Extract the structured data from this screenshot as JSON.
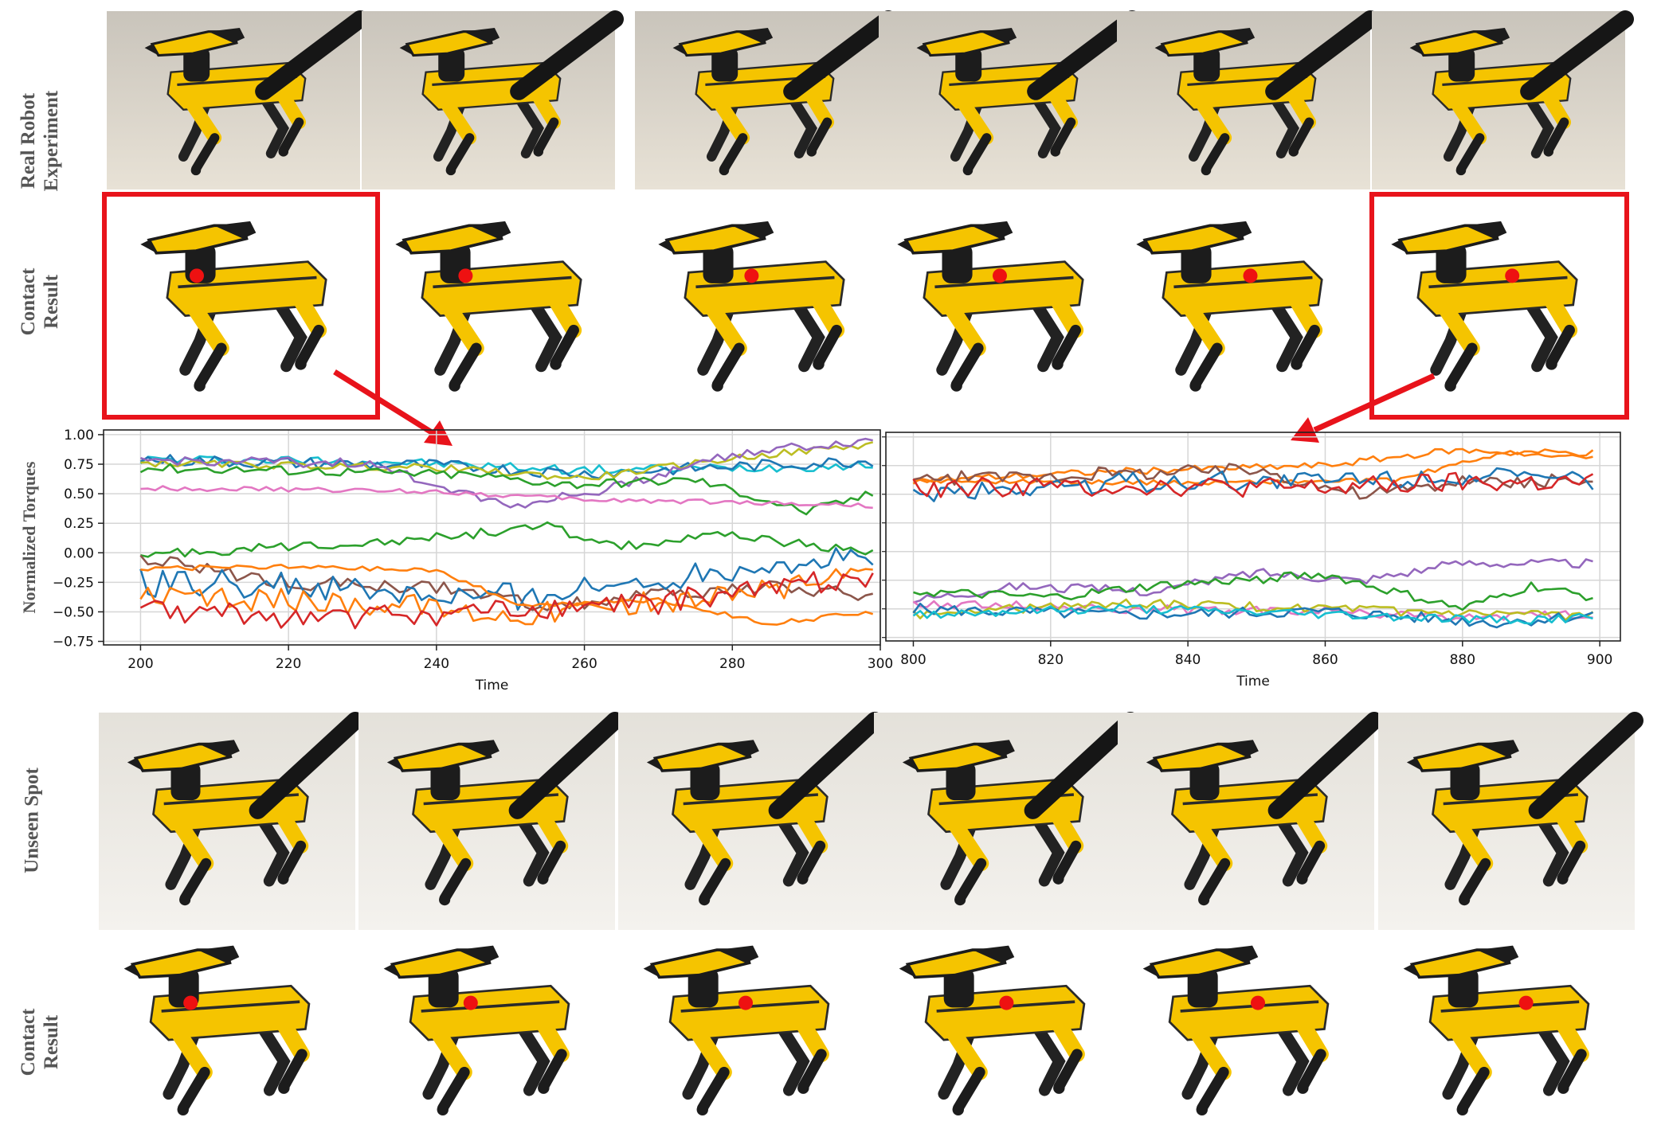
{
  "rows": {
    "real_robot": "Real Robot\nExperiment",
    "contact_1": "Contact\nResult",
    "unseen": "Unseen Spot",
    "contact_2": "Contact\nResult"
  },
  "colors": {
    "highlight": "#e8131b",
    "robot_yellow": "#f5c400",
    "robot_black": "#1c1c1c",
    "contact_dot": "#ee1111"
  },
  "chart_data": [
    {
      "type": "line",
      "title": "",
      "xlabel": "Time",
      "ylabel": "Normalized Torques",
      "xlim": [
        195,
        300
      ],
      "ylim": [
        -0.78,
        1.04
      ],
      "xticks": [
        "200",
        "220",
        "240",
        "260",
        "280",
        "300"
      ],
      "yticks": [
        "1.00",
        "0.75",
        "0.50",
        "0.25",
        "0.00",
        "−0.25",
        "−0.50",
        "−0.75"
      ],
      "grid": true,
      "x_start": 200,
      "x_end": 299,
      "series": [
        {
          "color": "#17becf",
          "anchors": [
            [
              200,
              0.79
            ],
            [
              230,
              0.78
            ],
            [
              245,
              0.74
            ],
            [
              260,
              0.7
            ],
            [
              280,
              0.72
            ],
            [
              299,
              0.74
            ]
          ],
          "noise": 0.04
        },
        {
          "color": "#1f77b4",
          "anchors": [
            [
              200,
              0.79
            ],
            [
              220,
              0.76
            ],
            [
              240,
              0.74
            ],
            [
              260,
              0.67
            ],
            [
              280,
              0.73
            ],
            [
              299,
              0.78
            ]
          ],
          "noise": 0.05
        },
        {
          "color": "#bcbd22",
          "anchors": [
            [
              200,
              0.76
            ],
            [
              220,
              0.74
            ],
            [
              240,
              0.72
            ],
            [
              260,
              0.63
            ],
            [
              280,
              0.8
            ],
            [
              299,
              0.92
            ]
          ],
          "noise": 0.03
        },
        {
          "color": "#9467bd",
          "anchors": [
            [
              200,
              0.78
            ],
            [
              230,
              0.76
            ],
            [
              250,
              0.4
            ],
            [
              262,
              0.52
            ],
            [
              280,
              0.84
            ],
            [
              299,
              0.95
            ]
          ],
          "noise": 0.04
        },
        {
          "color": "#2ca02c",
          "anchors": [
            [
              200,
              0.72
            ],
            [
              220,
              0.7
            ],
            [
              245,
              0.66
            ],
            [
              258,
              0.58
            ],
            [
              275,
              0.62
            ],
            [
              290,
              0.35
            ],
            [
              299,
              0.5
            ]
          ],
          "noise": 0.04
        },
        {
          "color": "#e377c2",
          "anchors": [
            [
              200,
              0.55
            ],
            [
              240,
              0.52
            ],
            [
              260,
              0.45
            ],
            [
              280,
              0.43
            ],
            [
              299,
              0.4
            ]
          ],
          "noise": 0.02
        },
        {
          "color": "#2ca02c",
          "anchors": [
            [
              200,
              -0.02
            ],
            [
              220,
              0.05
            ],
            [
              240,
              0.13
            ],
            [
              255,
              0.22
            ],
            [
              265,
              0.05
            ],
            [
              280,
              0.15
            ],
            [
              299,
              0.0
            ]
          ],
          "noise": 0.04
        },
        {
          "color": "#8c564b",
          "anchors": [
            [
              200,
              -0.05
            ],
            [
              220,
              -0.25
            ],
            [
              240,
              -0.3
            ],
            [
              255,
              -0.45
            ],
            [
              270,
              -0.35
            ],
            [
              285,
              -0.3
            ],
            [
              299,
              -0.35
            ]
          ],
          "noise": 0.06
        },
        {
          "color": "#1f77b4",
          "anchors": [
            [
              200,
              -0.25
            ],
            [
              220,
              -0.28
            ],
            [
              245,
              -0.4
            ],
            [
              262,
              -0.3
            ],
            [
              282,
              -0.1
            ],
            [
              299,
              -0.05
            ]
          ],
          "noise": 0.12
        },
        {
          "color": "#ff7f0e",
          "anchors": [
            [
              200,
              -0.13
            ],
            [
              220,
              -0.12
            ],
            [
              240,
              -0.15
            ],
            [
              252,
              -0.45
            ],
            [
              270,
              -0.4
            ],
            [
              285,
              -0.6
            ],
            [
              299,
              -0.5
            ]
          ],
          "noise": 0.02
        },
        {
          "color": "#ff7f0e",
          "anchors": [
            [
              200,
              -0.38
            ],
            [
              230,
              -0.42
            ],
            [
              250,
              -0.52
            ],
            [
              270,
              -0.42
            ],
            [
              299,
              -0.2
            ]
          ],
          "noise": 0.1
        },
        {
          "color": "#d62728",
          "anchors": [
            [
              200,
              -0.5
            ],
            [
              225,
              -0.55
            ],
            [
              250,
              -0.5
            ],
            [
              270,
              -0.42
            ],
            [
              299,
              -0.18
            ]
          ],
          "noise": 0.1
        }
      ]
    },
    {
      "type": "line",
      "title": "",
      "xlabel": "Time",
      "ylabel": "",
      "xlim": [
        796,
        903
      ],
      "ylim": [
        -0.78,
        1.04
      ],
      "xticks": [
        "800",
        "820",
        "840",
        "860",
        "880",
        "900"
      ],
      "yticks": [],
      "grid": true,
      "x_start": 800,
      "x_end": 899,
      "series": [
        {
          "color": "#ff7f0e",
          "anchors": [
            [
              800,
              0.62
            ],
            [
              830,
              0.7
            ],
            [
              860,
              0.75
            ],
            [
              878,
              0.88
            ],
            [
              899,
              0.86
            ]
          ],
          "noise": 0.03
        },
        {
          "color": "#ff7f0e",
          "anchors": [
            [
              800,
              0.62
            ],
            [
              840,
              0.6
            ],
            [
              870,
              0.62
            ],
            [
              885,
              0.85
            ],
            [
              899,
              0.82
            ]
          ],
          "noise": 0.02
        },
        {
          "color": "#8c564b",
          "anchors": [
            [
              800,
              0.63
            ],
            [
              830,
              0.68
            ],
            [
              850,
              0.72
            ],
            [
              865,
              0.5
            ],
            [
              880,
              0.6
            ],
            [
              899,
              0.62
            ]
          ],
          "noise": 0.06
        },
        {
          "color": "#1f77b4",
          "anchors": [
            [
              800,
              0.5
            ],
            [
              830,
              0.6
            ],
            [
              860,
              0.62
            ],
            [
              880,
              0.66
            ],
            [
              899,
              0.6
            ]
          ],
          "noise": 0.09
        },
        {
          "color": "#d62728",
          "anchors": [
            [
              800,
              0.55
            ],
            [
              830,
              0.58
            ],
            [
              860,
              0.55
            ],
            [
              880,
              0.6
            ],
            [
              899,
              0.6
            ]
          ],
          "noise": 0.09
        },
        {
          "color": "#9467bd",
          "anchors": [
            [
              800,
              -0.42
            ],
            [
              815,
              -0.3
            ],
            [
              835,
              -0.35
            ],
            [
              850,
              -0.18
            ],
            [
              865,
              -0.25
            ],
            [
              880,
              -0.1
            ],
            [
              899,
              -0.1
            ]
          ],
          "noise": 0.04
        },
        {
          "color": "#2ca02c",
          "anchors": [
            [
              800,
              -0.35
            ],
            [
              820,
              -0.4
            ],
            [
              835,
              -0.3
            ],
            [
              860,
              -0.2
            ],
            [
              880,
              -0.5
            ],
            [
              890,
              -0.3
            ],
            [
              899,
              -0.4
            ]
          ],
          "noise": 0.04
        },
        {
          "color": "#e377c2",
          "anchors": [
            [
              800,
              -0.45
            ],
            [
              830,
              -0.5
            ],
            [
              860,
              -0.52
            ],
            [
              880,
              -0.58
            ],
            [
              899,
              -0.55
            ]
          ],
          "noise": 0.04
        },
        {
          "color": "#bcbd22",
          "anchors": [
            [
              800,
              -0.55
            ],
            [
              830,
              -0.45
            ],
            [
              860,
              -0.5
            ],
            [
              880,
              -0.55
            ],
            [
              899,
              -0.56
            ]
          ],
          "noise": 0.04
        },
        {
          "color": "#1f77b4",
          "anchors": [
            [
              800,
              -0.5
            ],
            [
              830,
              -0.55
            ],
            [
              860,
              -0.52
            ],
            [
              885,
              -0.62
            ],
            [
              899,
              -0.55
            ]
          ],
          "noise": 0.05
        },
        {
          "color": "#17becf",
          "anchors": [
            [
              800,
              -0.55
            ],
            [
              830,
              -0.5
            ],
            [
              860,
              -0.55
            ],
            [
              885,
              -0.6
            ],
            [
              899,
              -0.58
            ]
          ],
          "noise": 0.04
        }
      ]
    }
  ]
}
